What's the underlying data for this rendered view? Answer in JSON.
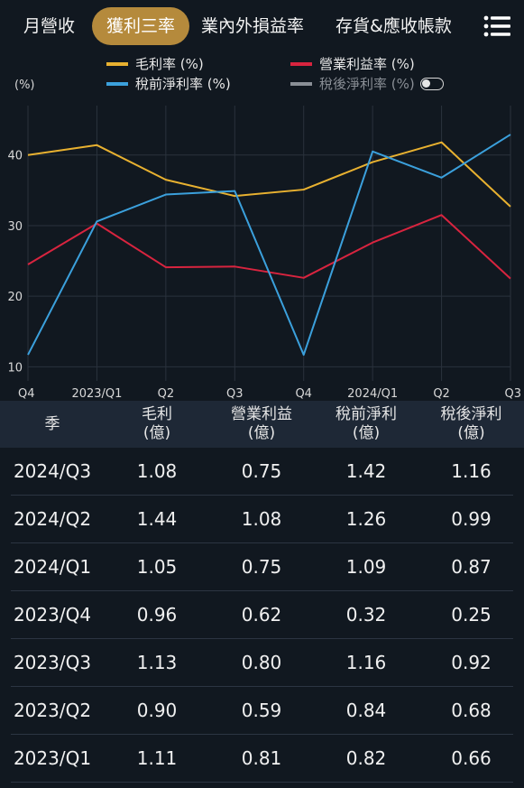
{
  "tabs": [
    {
      "label": "月營收",
      "active": false
    },
    {
      "label": "獲利三率",
      "active": true
    },
    {
      "label": "業內外損益率",
      "active": false
    },
    {
      "label": "存貨&應收帳款",
      "active": false
    }
  ],
  "menu_icon": "list-menu-icon",
  "legend": [
    {
      "label": "毛利率 (%)",
      "color": "#e8b130"
    },
    {
      "label": "營業利益率 (%)",
      "color": "#d8243f"
    },
    {
      "label": "稅前淨利率 (%)",
      "color": "#3ba0dc"
    },
    {
      "label": "稅後淨利率 (%)",
      "color": "#8a8f96",
      "toggle": "off"
    }
  ],
  "chart_data": {
    "type": "line",
    "ylabel": "(%)",
    "ylim": [
      8,
      47
    ],
    "yticks": [
      10,
      20,
      30,
      40
    ],
    "x": [
      "Q4",
      "2023/Q1",
      "Q2",
      "Q3",
      "Q4",
      "2024/Q1",
      "Q2",
      "Q3"
    ],
    "grid": true,
    "series": [
      {
        "name": "毛利率 (%)",
        "color": "#e8b130",
        "values": [
          40.0,
          41.4,
          36.5,
          34.2,
          35.1,
          39.0,
          41.8,
          32.7
        ]
      },
      {
        "name": "營業利益率 (%)",
        "color": "#d8243f",
        "values": [
          24.5,
          30.3,
          24.1,
          24.2,
          22.6,
          27.6,
          31.5,
          22.5
        ]
      },
      {
        "name": "稅前淨利率 (%)",
        "color": "#3ba0dc",
        "values": [
          11.7,
          30.6,
          34.4,
          34.9,
          11.7,
          40.5,
          36.8,
          42.9
        ]
      }
    ]
  },
  "table": {
    "headers": [
      "季",
      "毛利\n(億)",
      "營業利益\n(億)",
      "稅前淨利\n(億)",
      "稅後淨利\n(億)"
    ],
    "rows": [
      [
        "2024/Q3",
        "1.08",
        "0.75",
        "1.42",
        "1.16"
      ],
      [
        "2024/Q2",
        "1.44",
        "1.08",
        "1.26",
        "0.99"
      ],
      [
        "2024/Q1",
        "1.05",
        "0.75",
        "1.09",
        "0.87"
      ],
      [
        "2023/Q4",
        "0.96",
        "0.62",
        "0.32",
        "0.25"
      ],
      [
        "2023/Q3",
        "1.13",
        "0.80",
        "1.16",
        "0.92"
      ],
      [
        "2023/Q2",
        "0.90",
        "0.59",
        "0.84",
        "0.68"
      ],
      [
        "2023/Q1",
        "1.11",
        "0.81",
        "0.82",
        "0.66"
      ]
    ]
  }
}
